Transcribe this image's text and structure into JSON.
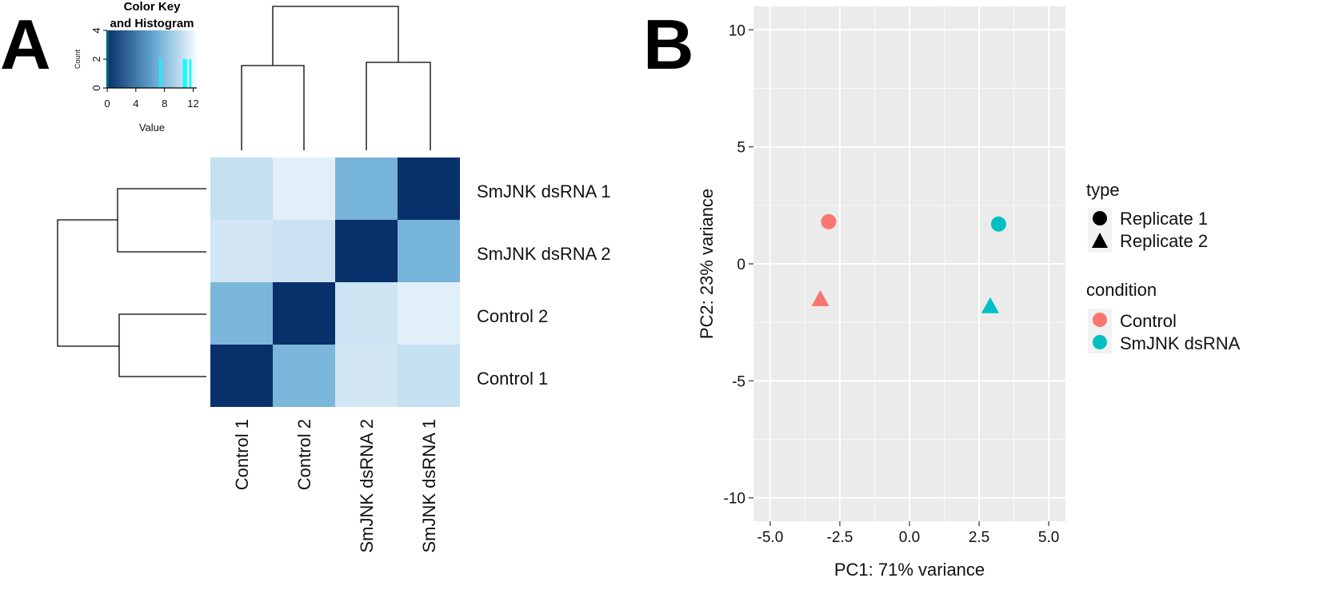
{
  "panels": {
    "a_letter": "A",
    "b_letter": "B"
  },
  "chart_data": [
    {
      "type": "heatmap",
      "title": "",
      "rows": [
        "SmJNK dsRNA 1",
        "SmJNK dsRNA 2",
        "Control 2",
        "Control 1"
      ],
      "columns": [
        "Control 1",
        "Control 2",
        "SmJNK dsRNA 2",
        "SmJNK dsRNA 1"
      ],
      "values": [
        [
          10.5,
          11.6,
          7.3,
          0
        ],
        [
          11.0,
          10.7,
          0,
          7.3
        ],
        [
          7.5,
          0,
          10.8,
          11.6
        ],
        [
          0,
          7.5,
          11.0,
          10.5
        ]
      ],
      "color_scale": {
        "low": "#08306b",
        "mid": "#6baed6",
        "high": "#f7fbff",
        "range": [
          0,
          12.5
        ]
      },
      "color_key": {
        "title_line1": "Color Key",
        "title_line2": "and Histogram",
        "xlabel": "Value",
        "ylabel": "Count",
        "x_ticks": [
          "0",
          "4",
          "8",
          "12"
        ],
        "y_ticks": [
          "0",
          "2",
          "4"
        ],
        "xlim": [
          0,
          12.5
        ],
        "ylim": [
          0,
          4
        ],
        "histogram": [
          {
            "x": 0,
            "count": 4
          },
          {
            "x": 7.4,
            "count": 2
          },
          {
            "x": 10.7,
            "count": 2
          },
          {
            "x": 11.0,
            "count": 2
          },
          {
            "x": 11.6,
            "count": 2
          }
        ],
        "histogram_color": "#00ffff"
      },
      "dendrogram": "hierarchical clustering on rows and columns"
    },
    {
      "type": "scatter",
      "title": "",
      "xlabel": "PC1: 71% variance",
      "ylabel": "PC2: 23% variance",
      "xlim": [
        -5.6,
        5.6
      ],
      "ylim": [
        -11,
        11
      ],
      "x_ticks": [
        -5.0,
        -2.5,
        0.0,
        2.5,
        5.0
      ],
      "x_tick_labels": [
        "-5.0",
        "-2.5",
        "0.0",
        "2.5",
        "5.0"
      ],
      "y_ticks": [
        -10,
        -5,
        0,
        5,
        10
      ],
      "y_tick_labels": [
        "-10",
        "-5",
        "0",
        "5",
        "10"
      ],
      "points": [
        {
          "x": -2.9,
          "y": 1.8,
          "condition": "Control",
          "type": "Replicate 1"
        },
        {
          "x": -3.2,
          "y": -1.5,
          "condition": "Control",
          "type": "Replicate 2"
        },
        {
          "x": 3.2,
          "y": 1.7,
          "condition": "SmJNK dsRNA",
          "type": "Replicate 1"
        },
        {
          "x": 2.9,
          "y": -1.8,
          "condition": "SmJNK dsRNA",
          "type": "Replicate 2"
        }
      ],
      "legend": {
        "type_title": "type",
        "type_entries": [
          {
            "label": "Replicate 1",
            "shape": "circle"
          },
          {
            "label": "Replicate 2",
            "shape": "triangle"
          }
        ],
        "condition_title": "condition",
        "condition_entries": [
          {
            "label": "Control",
            "color": "#f8766d"
          },
          {
            "label": "SmJNK dsRNA",
            "color": "#00bfc4"
          }
        ],
        "position": "right"
      },
      "grid": true,
      "panel_background": "#ebebeb"
    }
  ]
}
